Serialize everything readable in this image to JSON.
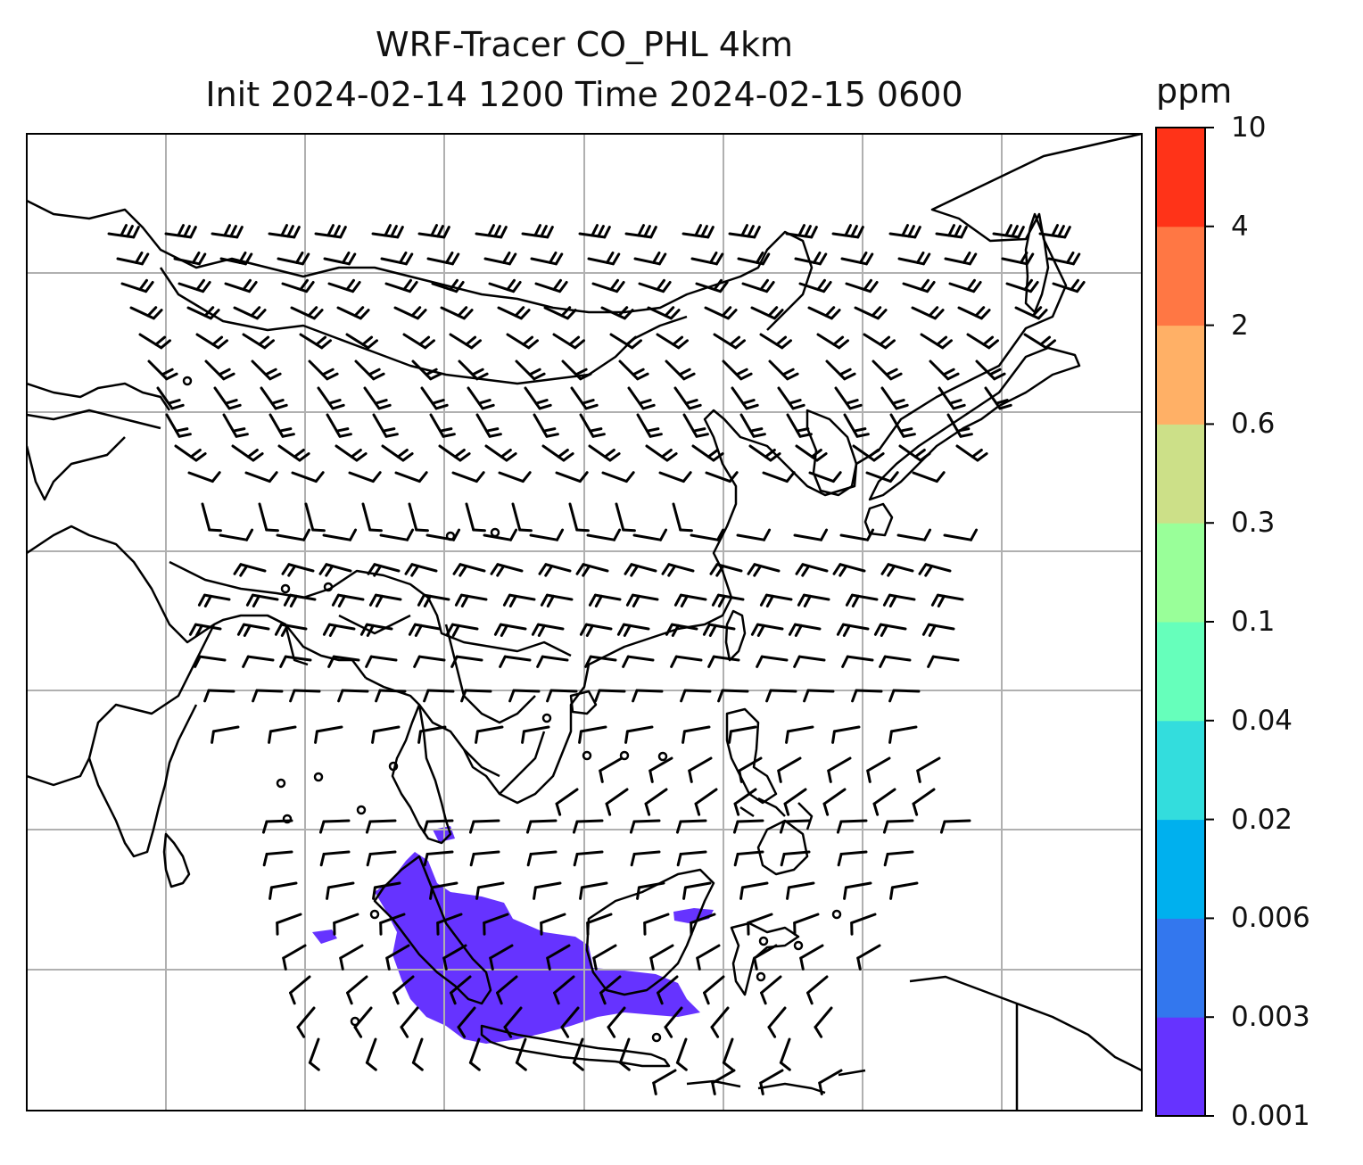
{
  "title": {
    "line1": "WRF-Tracer CO_PHL 4km",
    "line2": "Init 2024-02-14 1200 Time 2024-02-15 0600"
  },
  "colorbar": {
    "units": "ppm",
    "levels": [
      "0.001",
      "0.003",
      "0.006",
      "0.02",
      "0.04",
      "0.1",
      "0.3",
      "0.6",
      "2",
      "4",
      "10"
    ],
    "colors": [
      "#6633ff",
      "#3377ee",
      "#00b0ee",
      "#33dddd",
      "#66ffbb",
      "#99ff99",
      "#cce088",
      "#ffb066",
      "#ff7744",
      "#ff3318"
    ]
  },
  "map": {
    "plume_color": "#6633ff",
    "coastline_color": "#000000",
    "grid_color": "#b0b0b0",
    "wind_barbs": "shown",
    "gridlines": "shown"
  }
}
